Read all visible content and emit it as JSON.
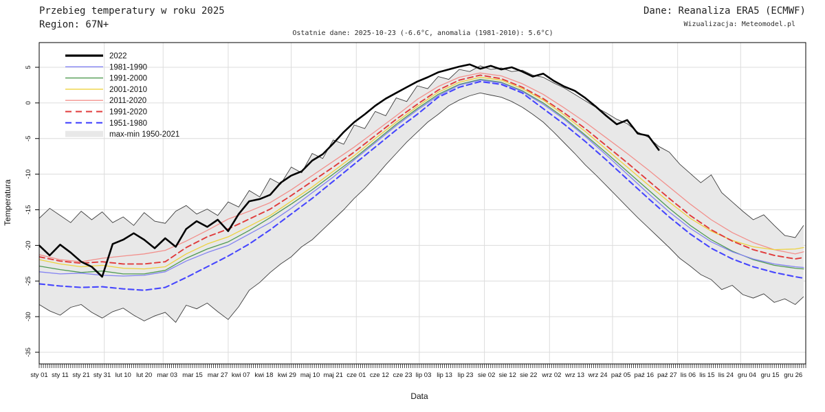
{
  "header": {
    "title": "Przebieg temperatury w roku 2025",
    "region": "Region: 67N+",
    "source": "Dane: Reanaliza ERA5 (ECMWF)",
    "credit": "Wizualizacja: Meteomodel.pl",
    "subtitle": "Ostatnie dane: 2025-10-23 (-6.6°C, anomalia (1981-2010): 5.6°C)"
  },
  "axes": {
    "y_label": "Temperatura",
    "x_label": "Data"
  },
  "legend": {
    "items": [
      {
        "label": "2022",
        "swatch": "line",
        "color": "#000000",
        "width": 3.2,
        "dash": null
      },
      {
        "label": "1981-1990",
        "swatch": "line",
        "color": "#8282f2",
        "width": 1.4,
        "dash": null
      },
      {
        "label": "1991-2000",
        "swatch": "line",
        "color": "#4f9a51",
        "width": 1.4,
        "dash": null
      },
      {
        "label": "2001-2010",
        "swatch": "line",
        "color": "#edd23d",
        "width": 1.4,
        "dash": null
      },
      {
        "label": "2011-2020",
        "swatch": "line",
        "color": "#f2908c",
        "width": 1.4,
        "dash": null
      },
      {
        "label": "1991-2020",
        "swatch": "line",
        "color": "#e03a3a",
        "width": 2.0,
        "dash": "9 6"
      },
      {
        "label": "1951-1980",
        "swatch": "line",
        "color": "#4646fe",
        "width": 2.2,
        "dash": "9 6"
      },
      {
        "label": "max-min 1950-2021",
        "swatch": "band",
        "color": "#e8e8e8",
        "width": 9,
        "dash": null
      }
    ]
  },
  "chart_data": {
    "type": "line",
    "title": "Przebieg temperatury w roku 2025",
    "x_unit": "day_of_year_2025",
    "x_domain": [
      0,
      365
    ],
    "y_view": [
      -36.6,
      8.5
    ],
    "ylabel": "Temperatura",
    "xlabel": "Data",
    "grid": true,
    "legend_position": "top-left-inside",
    "y_ticks": [
      5,
      0,
      -5,
      -10,
      -15,
      -20,
      -25,
      -30,
      -35
    ],
    "x_ticks": {
      "labels": [
        "sty 01",
        "sty 11",
        "sty 21",
        "sty 31",
        "lut 10",
        "lut 20",
        "mar 03",
        "mar 15",
        "mar 27",
        "kwi 07",
        "kwi 18",
        "kwi 29",
        "maj 10",
        "maj 21",
        "cze 01",
        "cze 12",
        "cze 23",
        "lip 03",
        "lip 13",
        "lip 23",
        "sie 02",
        "sie 12",
        "sie 22",
        "wrz 02",
        "wrz 13",
        "wrz 24",
        "paź 05",
        "paź 16",
        "paź 27",
        "lis 06",
        "lis 15",
        "lis 24",
        "gru 04",
        "gru 15",
        "gru 26"
      ],
      "days": [
        0,
        10,
        20,
        30,
        40,
        50,
        61,
        73,
        85,
        96,
        107,
        118,
        129,
        140,
        151,
        162,
        173,
        183,
        193,
        203,
        213,
        223,
        233,
        244,
        255,
        266,
        277,
        288,
        299,
        309,
        318,
        327,
        337,
        348,
        359
      ]
    },
    "month_grid_days": [
      31,
      59,
      90,
      120,
      151,
      181,
      212,
      243,
      273,
      304,
      334
    ],
    "band": {
      "name": "max-min 1950-2021",
      "fill": "#e8e8e8",
      "edge": "#3c3c3c",
      "days": [
        0,
        5,
        10,
        15,
        20,
        25,
        30,
        35,
        40,
        45,
        50,
        55,
        60,
        65,
        70,
        75,
        80,
        85,
        90,
        95,
        100,
        105,
        110,
        115,
        120,
        125,
        130,
        135,
        140,
        145,
        150,
        155,
        160,
        165,
        170,
        175,
        180,
        185,
        190,
        195,
        200,
        205,
        210,
        215,
        220,
        225,
        230,
        235,
        240,
        245,
        250,
        255,
        260,
        265,
        270,
        275,
        280,
        285,
        290,
        295,
        300,
        305,
        310,
        315,
        320,
        325,
        330,
        335,
        340,
        345,
        350,
        355,
        360,
        364
      ],
      "max": [
        -16.2,
        -14.8,
        -15.8,
        -16.8,
        -15.2,
        -16.4,
        -15.3,
        -16.8,
        -16.0,
        -17.2,
        -15.4,
        -16.6,
        -16.9,
        -15.2,
        -14.4,
        -15.6,
        -14.9,
        -15.8,
        -13.9,
        -14.6,
        -12.3,
        -13.2,
        -10.6,
        -11.4,
        -9.0,
        -9.8,
        -7.1,
        -7.8,
        -5.2,
        -5.8,
        -3.1,
        -3.6,
        -1.2,
        -1.8,
        0.7,
        0.2,
        2.4,
        2.0,
        3.7,
        3.3,
        4.7,
        4.4,
        5.2,
        4.7,
        4.9,
        4.4,
        4.6,
        3.9,
        3.6,
        2.8,
        2.1,
        1.2,
        0.3,
        -0.6,
        -1.4,
        -2.3,
        -2.9,
        -4.1,
        -4.8,
        -6.1,
        -6.9,
        -8.6,
        -9.9,
        -11.2,
        -10.1,
        -12.6,
        -13.9,
        -15.2,
        -16.4,
        -15.7,
        -17.2,
        -18.6,
        -18.9,
        -17.2
      ],
      "min": [
        -28.3,
        -29.2,
        -29.8,
        -28.7,
        -28.3,
        -29.4,
        -30.2,
        -29.3,
        -28.8,
        -29.8,
        -30.6,
        -29.9,
        -29.4,
        -30.8,
        -28.4,
        -28.9,
        -28.1,
        -29.3,
        -30.4,
        -28.6,
        -26.3,
        -25.2,
        -23.8,
        -22.6,
        -21.6,
        -20.2,
        -19.2,
        -17.8,
        -16.4,
        -15.0,
        -13.4,
        -12.0,
        -10.4,
        -8.7,
        -7.1,
        -5.5,
        -4.1,
        -2.7,
        -1.6,
        -0.4,
        0.4,
        1.0,
        1.4,
        1.1,
        0.8,
        0.2,
        -0.6,
        -1.6,
        -2.7,
        -4.1,
        -5.6,
        -7.1,
        -8.7,
        -10.1,
        -11.6,
        -13.1,
        -14.6,
        -16.1,
        -17.5,
        -18.9,
        -20.3,
        -21.8,
        -22.9,
        -24.1,
        -24.8,
        -26.2,
        -25.6,
        -26.9,
        -27.4,
        -26.8,
        -28.0,
        -27.5,
        -28.3,
        -27.2
      ]
    },
    "climo_days": [
      0,
      10,
      20,
      30,
      40,
      50,
      60,
      70,
      80,
      90,
      100,
      110,
      120,
      130,
      140,
      150,
      160,
      170,
      180,
      190,
      200,
      210,
      220,
      230,
      240,
      250,
      260,
      270,
      280,
      290,
      300,
      310,
      320,
      330,
      340,
      350,
      360,
      364
    ],
    "series": [
      {
        "name": "1981-1990",
        "color": "#8282f2",
        "width": 1.3,
        "dash": null,
        "days_ref": "climo_days",
        "values": [
          -23.7,
          -24.0,
          -23.9,
          -24.2,
          -24.3,
          -24.2,
          -23.7,
          -22.2,
          -21.0,
          -20.0,
          -18.4,
          -16.8,
          -14.8,
          -12.6,
          -10.4,
          -8.0,
          -5.6,
          -3.2,
          -1.0,
          1.0,
          2.5,
          3.2,
          2.8,
          1.6,
          -0.2,
          -2.3,
          -4.7,
          -7.3,
          -10.0,
          -12.7,
          -15.3,
          -17.6,
          -19.5,
          -20.9,
          -21.9,
          -22.6,
          -23.0,
          -23.1
        ]
      },
      {
        "name": "1991-2000",
        "color": "#4f9a51",
        "width": 1.3,
        "dash": null,
        "days_ref": "climo_days",
        "values": [
          -22.9,
          -23.4,
          -23.8,
          -23.6,
          -24.0,
          -24.0,
          -23.5,
          -21.8,
          -20.5,
          -19.5,
          -17.9,
          -16.1,
          -14.2,
          -12.2,
          -10.0,
          -7.8,
          -5.4,
          -3.0,
          -0.8,
          1.2,
          2.6,
          3.3,
          2.9,
          1.7,
          0.0,
          -2.1,
          -4.5,
          -7.0,
          -9.6,
          -12.2,
          -14.8,
          -17.2,
          -19.2,
          -20.8,
          -22.0,
          -22.8,
          -23.2,
          -23.3
        ]
      },
      {
        "name": "2001-2010",
        "color": "#edd23d",
        "width": 1.3,
        "dash": null,
        "days_ref": "climo_days",
        "values": [
          -22.0,
          -22.6,
          -23.0,
          -22.8,
          -23.2,
          -23.3,
          -23.0,
          -21.2,
          -19.8,
          -18.8,
          -17.3,
          -15.8,
          -13.8,
          -11.8,
          -9.6,
          -7.4,
          -5.0,
          -2.7,
          -0.5,
          1.5,
          2.9,
          3.6,
          3.2,
          2.0,
          0.4,
          -1.7,
          -4.0,
          -6.5,
          -9.0,
          -11.5,
          -13.9,
          -16.2,
          -18.0,
          -19.3,
          -20.2,
          -20.6,
          -20.5,
          -20.3
        ]
      },
      {
        "name": "2011-2020",
        "color": "#f2908c",
        "width": 1.3,
        "dash": null,
        "days_ref": "climo_days",
        "values": [
          -21.3,
          -22.0,
          -22.3,
          -21.8,
          -21.5,
          -21.2,
          -20.7,
          -19.4,
          -17.9,
          -16.3,
          -15.2,
          -14.0,
          -12.2,
          -10.2,
          -8.2,
          -6.2,
          -4.0,
          -1.8,
          0.5,
          2.3,
          3.6,
          4.2,
          3.8,
          2.7,
          1.2,
          -0.7,
          -2.7,
          -4.9,
          -7.1,
          -9.4,
          -11.8,
          -14.2,
          -16.4,
          -18.2,
          -19.6,
          -20.6,
          -21.2,
          -20.9
        ]
      },
      {
        "name": "1991-2020",
        "color": "#e03a3a",
        "width": 1.9,
        "dash": "8 5",
        "days_ref": "climo_days",
        "values": [
          -21.6,
          -22.2,
          -22.5,
          -22.3,
          -22.6,
          -22.6,
          -22.3,
          -20.3,
          -18.8,
          -17.7,
          -16.3,
          -14.9,
          -13.0,
          -11.0,
          -9.0,
          -6.9,
          -4.6,
          -2.3,
          -0.2,
          1.8,
          3.2,
          3.9,
          3.4,
          2.2,
          0.6,
          -1.4,
          -3.6,
          -6.0,
          -8.4,
          -10.9,
          -13.4,
          -15.8,
          -17.8,
          -19.4,
          -20.6,
          -21.4,
          -21.9,
          -21.7
        ]
      },
      {
        "name": "1951-1980",
        "color": "#4646fe",
        "width": 2.1,
        "dash": "8 5",
        "days_ref": "climo_days",
        "values": [
          -25.4,
          -25.7,
          -25.9,
          -25.8,
          -26.1,
          -26.3,
          -25.9,
          -24.5,
          -23.0,
          -21.5,
          -19.8,
          -17.8,
          -15.6,
          -13.4,
          -11.0,
          -8.6,
          -6.2,
          -3.8,
          -1.6,
          0.8,
          2.2,
          3.0,
          2.6,
          1.4,
          -0.8,
          -3.0,
          -5.4,
          -8.0,
          -10.7,
          -13.4,
          -16.0,
          -18.4,
          -20.4,
          -21.9,
          -23.0,
          -23.8,
          -24.4,
          -24.6
        ]
      },
      {
        "name": "2022",
        "color": "#000000",
        "width": 2.6,
        "dash": null,
        "days": [
          0,
          5,
          10,
          15,
          20,
          25,
          30,
          35,
          40,
          45,
          50,
          55,
          60,
          65,
          70,
          75,
          80,
          85,
          90,
          95,
          100,
          105,
          110,
          115,
          120,
          125,
          130,
          135,
          140,
          145,
          150,
          155,
          160,
          165,
          170,
          175,
          180,
          185,
          190,
          195,
          200,
          205,
          210,
          215,
          220,
          225,
          230,
          235,
          240,
          245,
          250,
          255,
          260,
          265,
          270,
          275,
          280,
          285,
          290,
          295
        ],
        "values": [
          -20.0,
          -21.4,
          -19.9,
          -21.0,
          -22.3,
          -23.0,
          -24.4,
          -19.8,
          -19.2,
          -18.3,
          -19.2,
          -20.4,
          -19.0,
          -20.2,
          -17.7,
          -16.6,
          -17.4,
          -16.4,
          -18.0,
          -15.6,
          -13.8,
          -13.5,
          -12.9,
          -11.2,
          -10.2,
          -9.6,
          -8.1,
          -7.2,
          -5.7,
          -4.1,
          -2.7,
          -1.6,
          -0.4,
          0.6,
          1.4,
          2.2,
          3.0,
          3.6,
          4.3,
          4.7,
          5.1,
          5.4,
          4.8,
          5.2,
          4.7,
          5.0,
          4.4,
          3.7,
          4.1,
          3.1,
          2.3,
          1.7,
          0.7,
          -0.5,
          -1.8,
          -3.0,
          -2.4,
          -4.3,
          -4.6,
          -6.6
        ]
      }
    ],
    "last_point": {
      "date": "2025-10-23",
      "value_c": -6.6,
      "anomaly_1981_2010_c": 5.6
    },
    "colors": {
      "grid": "#dcdcdc",
      "axis": "#000000",
      "band_fill": "#e8e8e8",
      "band_edge": "#3c3c3c"
    }
  }
}
